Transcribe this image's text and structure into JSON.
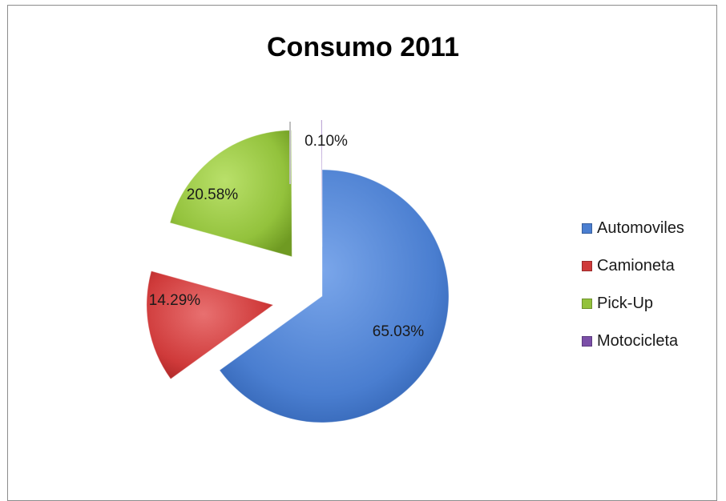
{
  "chart_data": {
    "type": "pie",
    "title": "Consumo 2011",
    "categories": [
      "Automoviles",
      "Camioneta",
      "Pick-Up",
      "Motocicleta"
    ],
    "values": [
      65.03,
      14.29,
      20.58,
      0.1
    ],
    "data_labels": [
      "65.03%",
      "14.29%",
      "20.58%",
      "0.10%"
    ],
    "colors": [
      "#4a7ed0",
      "#cf3a3a",
      "#93c23c",
      "#7b4fa8"
    ],
    "exploded": true,
    "legend_position": "right"
  }
}
